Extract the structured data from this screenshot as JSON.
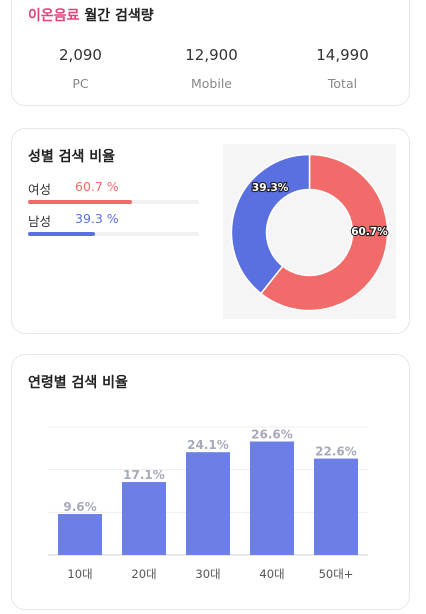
{
  "volume": {
    "keyword": "이온음료",
    "title_rest": "월간 검색량",
    "stats": [
      {
        "value": "2,090",
        "label": "PC"
      },
      {
        "value": "12,900",
        "label": "Mobile"
      },
      {
        "value": "14,990",
        "label": "Total"
      }
    ]
  },
  "gender": {
    "title": "성별 검색 비율",
    "female": {
      "label": "여성",
      "value_text": "60.7 %",
      "value": 60.7,
      "color": "#f26b6b"
    },
    "male": {
      "label": "남성",
      "value_text": "39.3 %",
      "value": 39.3,
      "color": "#5a6fe0"
    }
  },
  "age": {
    "title": "연령별 검색 비율"
  },
  "chart_data": [
    {
      "type": "pie",
      "variant": "donut",
      "labels": [
        "여성",
        "남성"
      ],
      "values": [
        60.7,
        39.3
      ],
      "data_labels": [
        "60.7%",
        "39.3%"
      ],
      "colors": [
        "#f26b6b",
        "#5a6fe0"
      ]
    },
    {
      "type": "bar",
      "categories": [
        "10대",
        "20대",
        "30대",
        "40대",
        "50대+"
      ],
      "values": [
        9.6,
        17.1,
        24.1,
        26.6,
        22.6
      ],
      "data_labels": [
        "9.6%",
        "17.1%",
        "24.1%",
        "26.6%",
        "22.6%"
      ],
      "ylim": [
        0,
        30
      ],
      "grid": true,
      "bar_color": "#6b7fe6",
      "label_color": "#a7aabb"
    }
  ]
}
